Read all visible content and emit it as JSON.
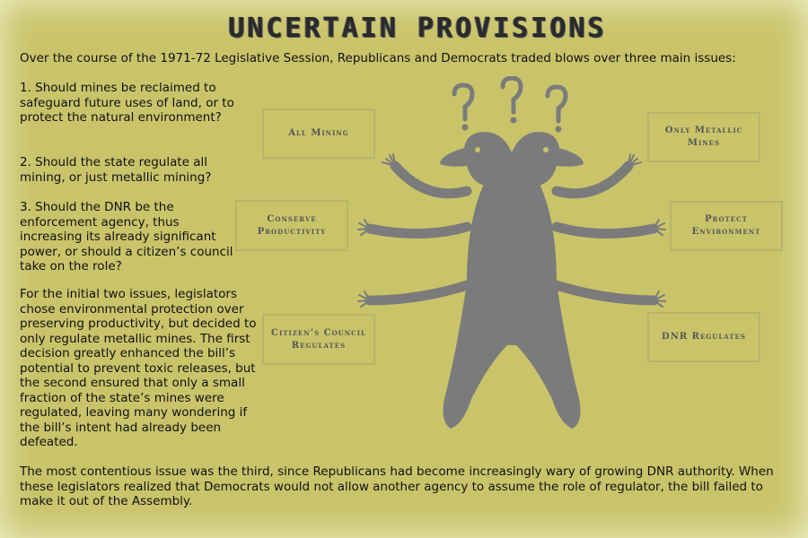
{
  "title": "UNCERTAIN PROVISIONS",
  "intro": "Over the course of the 1971-72 Legislative Session, Republicans and Democrats traded blows over three main issues:",
  "questions": [
    "1. Should mines be reclaimed to safeguard future uses of land, or to protect the natural environment?",
    "2. Should the state regulate all mining, or just metallic mining?",
    "3. Should the DNR be the enforcement agency, thus increasing its already significant power, or should a citizen’s council take on the role?"
  ],
  "paragraph": "For the initial two issues, legislators chose environmental protection over preserving productivity, but decided to only regulate metallic mines. The first decision greatly enhanced the bill’s potential to prevent toxic releases, but the second ensured that only a small fraction of the state’s mines were regulated, leaving many wondering if the bill’s intent had already been defeated.",
  "closing": "The most contentious issue was the third, since Republicans had become increasingly wary of growing DNR authority. When these legislators realized that Democrats would not allow another agency to assume the role of regulator, the bill failed to make it out of the Assembly.",
  "boxes": {
    "all_mining": "All Mining",
    "only_metallic": "Only Metallic Mines",
    "conserve": "Conserve Productivity",
    "protect": "Protect Environment",
    "citizens_council": "Citizen’s Council Regulates",
    "dnr_regulates": "DNR Regulates"
  },
  "colors": {
    "background": "#c9c46a",
    "figure": "#7b7b7b",
    "box_border": "#b7b46a"
  }
}
